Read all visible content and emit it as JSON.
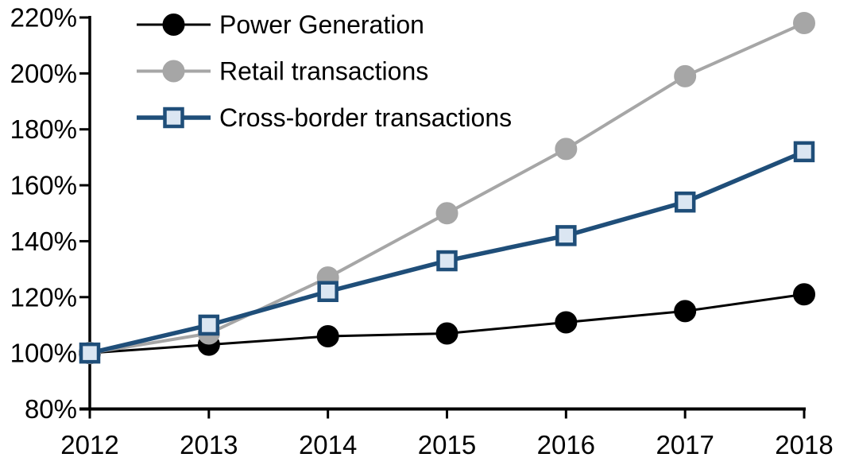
{
  "chart_data": {
    "type": "line",
    "title": "",
    "xlabel": "",
    "ylabel": "",
    "x": [
      "2012",
      "2013",
      "2014",
      "2015",
      "2016",
      "2017",
      "2018"
    ],
    "y_axis": {
      "min": 80,
      "max": 220,
      "step": 20,
      "suffix": "%"
    },
    "grid": false,
    "legend_position": "top-left-inside",
    "background_color": "#ffffff",
    "axis_color": "#000000",
    "series": [
      {
        "name": "Power Generation",
        "line_color": "#000000",
        "marker": "circle",
        "marker_fill": "#000000",
        "marker_stroke": "#000000",
        "values": [
          100,
          103,
          106,
          107,
          111,
          115,
          121
        ]
      },
      {
        "name": "Retail transactions",
        "line_color": "#a6a6a6",
        "marker": "circle",
        "marker_fill": "#a6a6a6",
        "marker_stroke": "#a6a6a6",
        "values": [
          100,
          107,
          127,
          150,
          173,
          199,
          218
        ]
      },
      {
        "name": "Cross-border transactions",
        "line_color": "#1f4e79",
        "marker": "square",
        "marker_fill": "#dbe6f2",
        "marker_stroke": "#1f4e79",
        "values": [
          100,
          110,
          122,
          133,
          142,
          154,
          172
        ]
      }
    ]
  }
}
